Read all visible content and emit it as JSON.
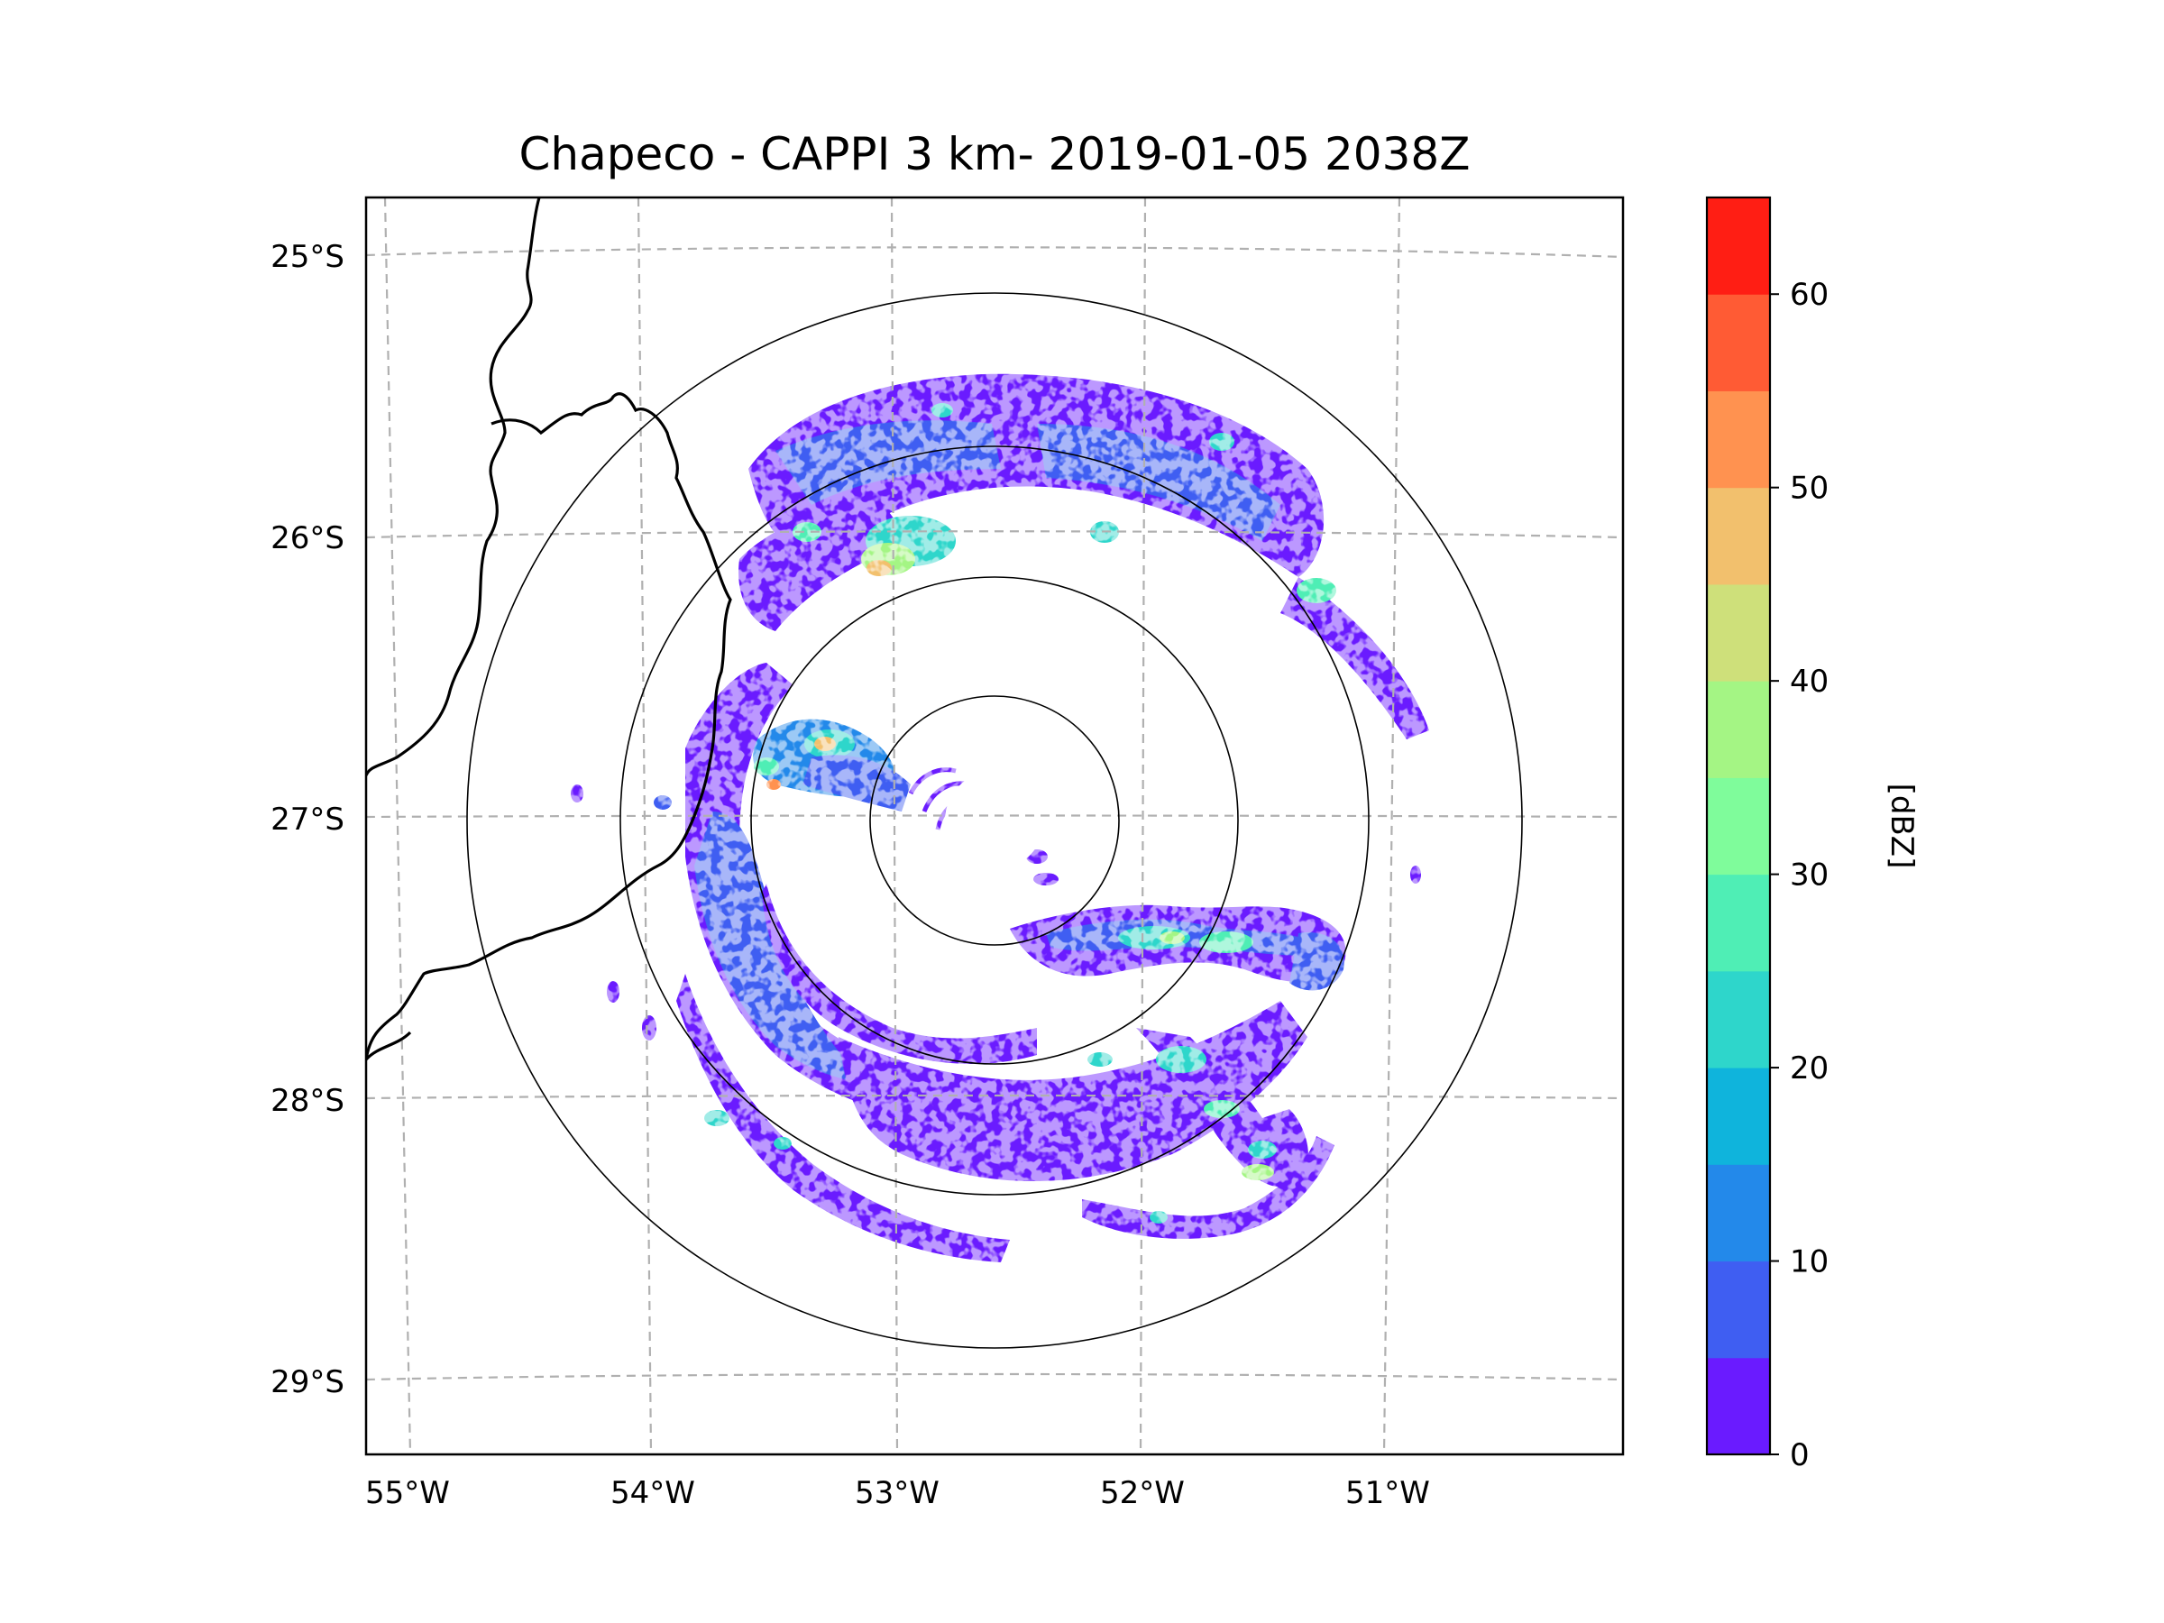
{
  "title": "Chapeco - CAPPI 3 km- 2019-01-05 2038Z",
  "map": {
    "lat_labels": [
      "25°S",
      "26°S",
      "27°S",
      "28°S",
      "29°S"
    ],
    "lon_labels": [
      "55°W",
      "54°W",
      "53°W",
      "52°W",
      "51°W"
    ],
    "gridlines": "dashed",
    "range_rings": 4,
    "radar_center": {
      "lon": "52.6°W",
      "lat": "27.0°S"
    }
  },
  "colorbar": {
    "label": "[dBZ]",
    "ticks": [
      "0",
      "10",
      "20",
      "30",
      "40",
      "50",
      "60"
    ],
    "bins": [
      0,
      5,
      10,
      15,
      20,
      25,
      30,
      35,
      40,
      45,
      50,
      55,
      60,
      65
    ],
    "colors": [
      "#6a1bff",
      "#3f5ef2",
      "#2389ea",
      "#0fb4dc",
      "#2ed6cb",
      "#4feeb5",
      "#7ffc9b",
      "#a4f584",
      "#cee07a",
      "#f2c06d",
      "#ff9250",
      "#ff5b34",
      "#ff1e14"
    ]
  },
  "colors": {
    "grid": "#b0b0b0",
    "coast": "#000000",
    "ring": "#000000"
  }
}
